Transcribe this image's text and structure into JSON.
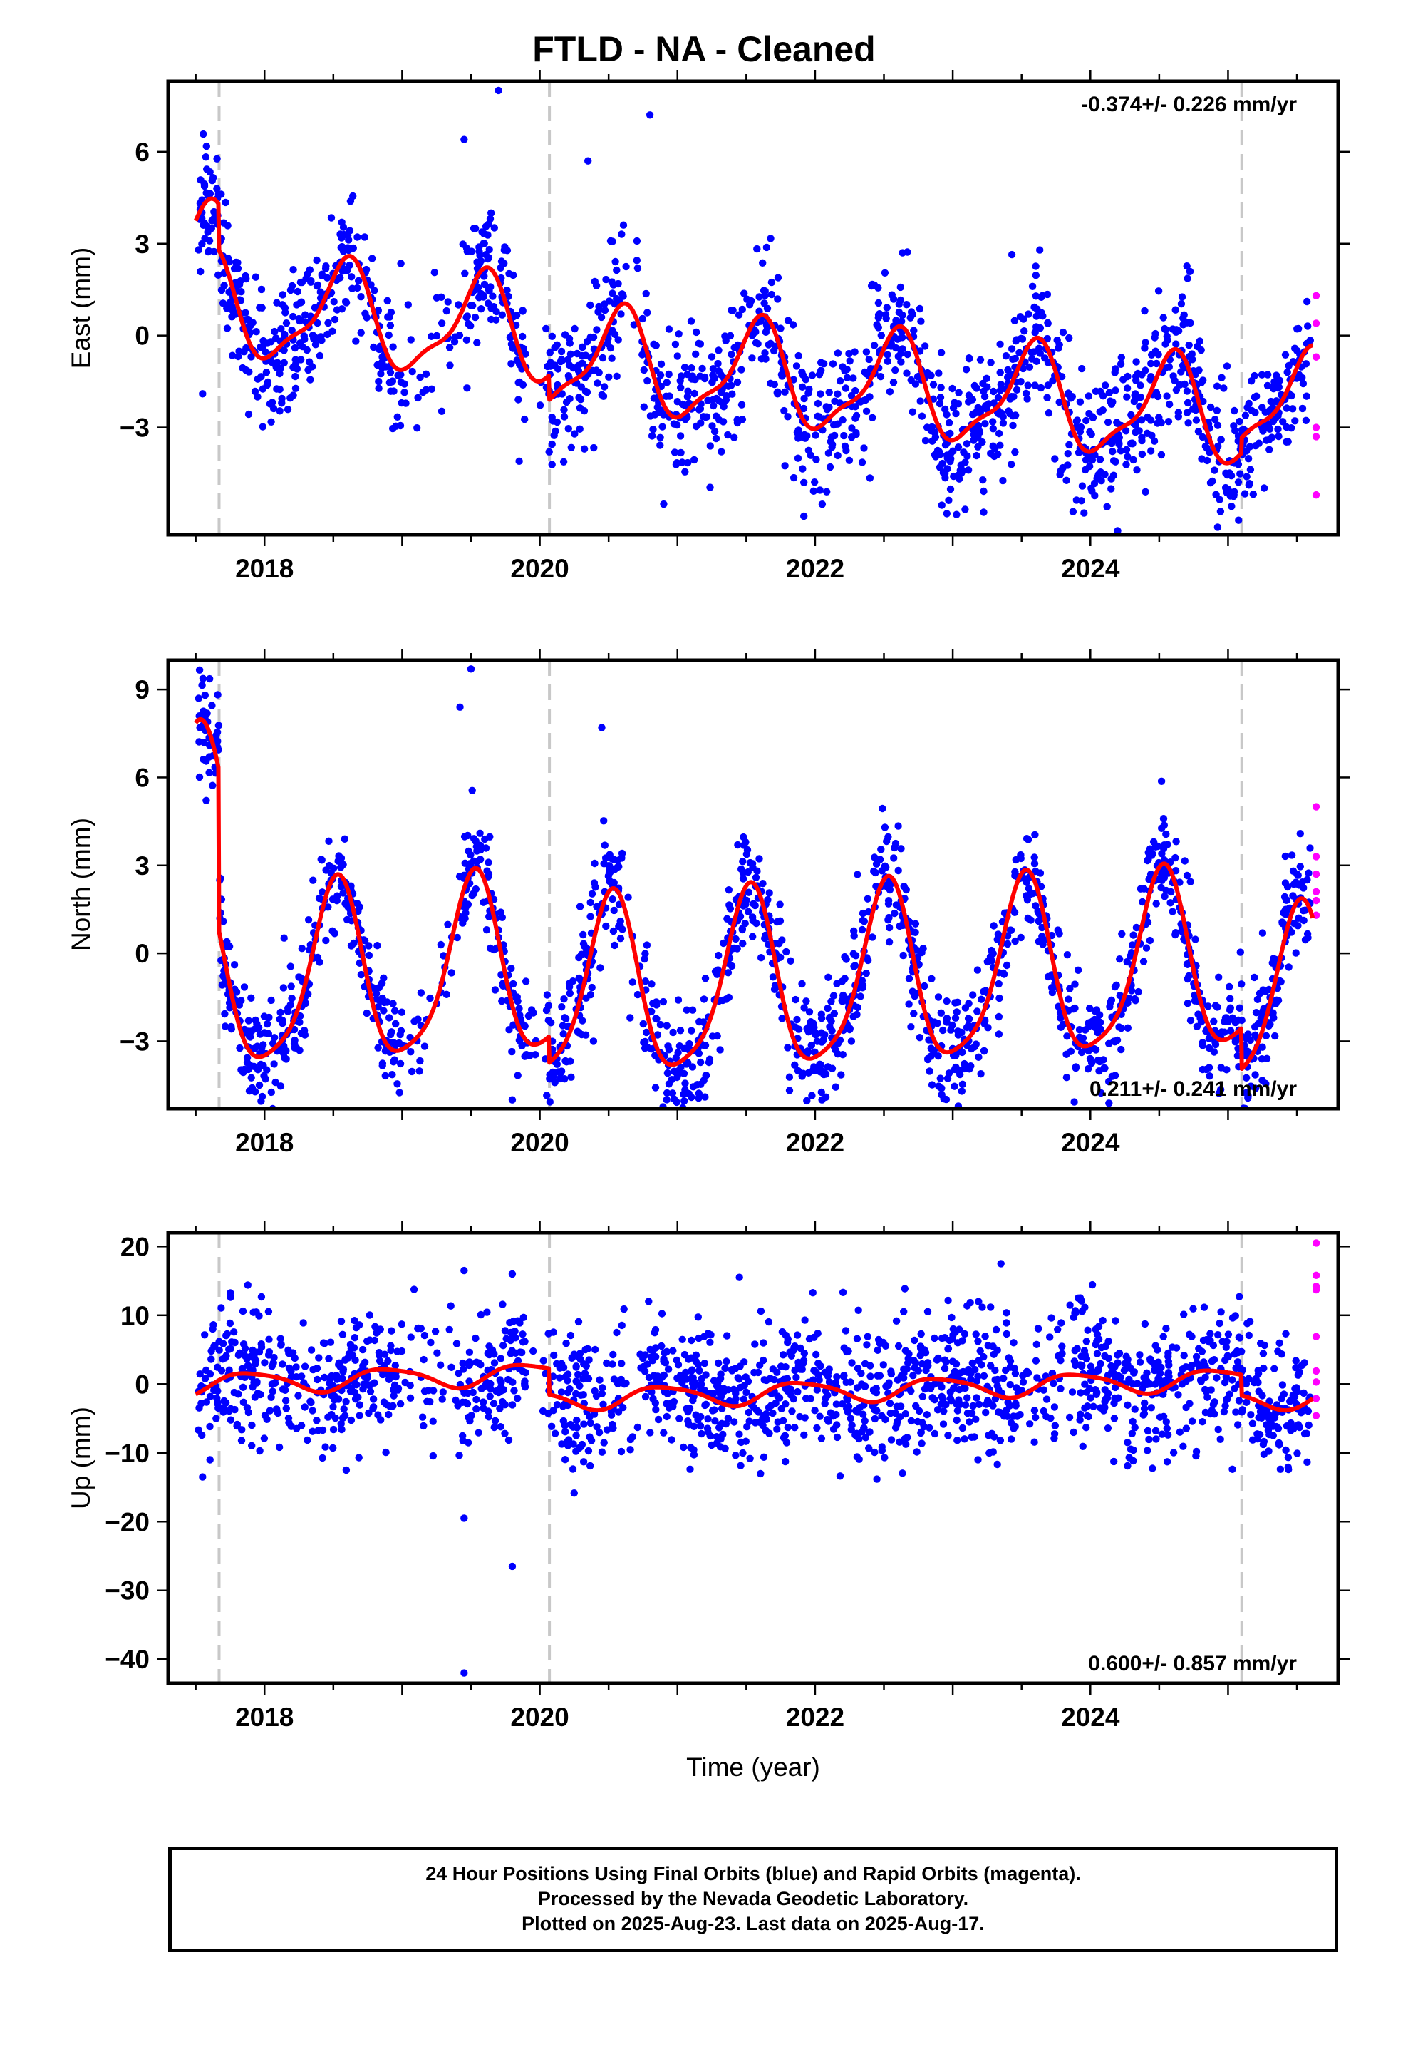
{
  "title": "FTLD  - NA - Cleaned",
  "footer": [
    "24 Hour Positions Using Final Orbits (blue) and Rapid Orbits (magenta).",
    "Processed by the Nevada Geodetic Laboratory.",
    "Plotted on 2025-Aug-23. Last data on 2025-Aug-17."
  ],
  "colors": {
    "final_orbits": "#0000ff",
    "rapid_orbits": "#ff00ff",
    "model_fit": "#ff0000",
    "equipment_change_lines": "#c8c8c8"
  },
  "chart_data": [
    {
      "type": "scatter",
      "panel": "east",
      "ylabel": "East (mm)",
      "xlabel": "",
      "xlim": [
        2017.3,
        2025.8
      ],
      "ylim": [
        -6.5,
        8.3
      ],
      "xticks": [
        2018,
        2020,
        2022,
        2024
      ],
      "yticks": [
        -3,
        0,
        3,
        6
      ],
      "rate_label": "-0.374+/- 0.226 mm/yr",
      "rate_position": "top-right",
      "step_lines_x": [
        2017.67,
        2020.07,
        2025.1
      ],
      "fit": {
        "offset": 2.5,
        "trend": -0.374,
        "annual_amp": 1.6,
        "annual_phase": 0.58,
        "semi_amp": 0.5,
        "semi_phase": 0.15,
        "steps": [
          {
            "x": 2017.67,
            "dy": -1.5
          },
          {
            "x": 2020.07,
            "dy": -0.8
          },
          {
            "x": 2025.1,
            "dy": 0.5
          }
        ]
      },
      "scatter_sigma": 1.1,
      "n_final_points": 1700,
      "rapid_points": [
        [
          2025.64,
          1.3
        ],
        [
          2025.64,
          0.4
        ],
        [
          2025.64,
          -0.7
        ],
        [
          2025.64,
          -3.0
        ],
        [
          2025.64,
          -3.3
        ],
        [
          2025.64,
          -5.2
        ]
      ],
      "outliers": [
        [
          2019.7,
          8.0
        ],
        [
          2020.8,
          7.2
        ],
        [
          2019.45,
          6.4
        ],
        [
          2020.35,
          5.7
        ],
        [
          2017.55,
          -1.9
        ],
        [
          2019.85,
          -4.1
        ],
        [
          2020.9,
          -5.5
        ],
        [
          2024.15,
          -5.0
        ],
        [
          2024.4,
          -5.1
        ]
      ]
    },
    {
      "type": "scatter",
      "panel": "north",
      "ylabel": "North (mm)",
      "xlabel": "",
      "xlim": [
        2017.3,
        2025.8
      ],
      "ylim": [
        -5.3,
        10.0
      ],
      "xticks": [
        2018,
        2020,
        2022,
        2024
      ],
      "yticks": [
        -3,
        0,
        3,
        6,
        9
      ],
      "rate_label": "0.211+/- 0.241 mm/yr",
      "rate_position": "bottom-right",
      "step_lines_x": [
        2017.67,
        2020.07,
        2025.1
      ],
      "fit": {
        "offset": 4.4,
        "trend": 0.211,
        "annual_amp": 3.0,
        "annual_phase": 0.52,
        "semi_amp": 0.6,
        "semi_phase": 0.05,
        "steps": [
          {
            "x": 2017.67,
            "dy": -5.5
          },
          {
            "x": 2020.07,
            "dy": -0.9
          },
          {
            "x": 2025.1,
            "dy": -1.4
          }
        ]
      },
      "scatter_sigma": 1.0,
      "n_final_points": 1700,
      "rapid_points": [
        [
          2025.64,
          5.0
        ],
        [
          2025.64,
          3.3
        ],
        [
          2025.64,
          2.7
        ],
        [
          2025.64,
          2.1
        ],
        [
          2025.64,
          1.8
        ],
        [
          2025.64,
          1.3
        ]
      ],
      "outliers": [
        [
          2019.5,
          9.7
        ],
        [
          2019.42,
          8.4
        ],
        [
          2020.45,
          7.7
        ],
        [
          2019.8,
          -5.0
        ],
        [
          2022.05,
          -5.0
        ],
        [
          2021.2,
          -4.9
        ],
        [
          2024.95,
          -3.9
        ]
      ]
    },
    {
      "type": "scatter",
      "panel": "up",
      "ylabel": "Up (mm)",
      "xlabel": "Time (year)",
      "xlim": [
        2017.3,
        2025.8
      ],
      "ylim": [
        -43.5,
        22
      ],
      "xticks": [
        2018,
        2020,
        2022,
        2024
      ],
      "yticks": [
        -40,
        -30,
        -20,
        -10,
        0,
        10,
        20
      ],
      "rate_label": "0.600+/- 0.857 mm/yr",
      "rate_position": "bottom-right",
      "step_lines_x": [
        2017.67,
        2020.07,
        2025.1
      ],
      "fit": {
        "offset": 0.0,
        "trend": 0.6,
        "annual_amp": 1.5,
        "annual_phase": 0.9,
        "semi_amp": 0.3,
        "semi_phase": 0.2,
        "steps": [
          {
            "x": 2020.07,
            "dy": -3.8
          },
          {
            "x": 2025.1,
            "dy": -3.0
          }
        ]
      },
      "scatter_sigma": 4.8,
      "n_final_points": 1700,
      "rapid_points": [
        [
          2025.64,
          20.5
        ],
        [
          2025.64,
          15.8
        ],
        [
          2025.64,
          14.2
        ],
        [
          2025.64,
          13.7
        ],
        [
          2025.64,
          6.9
        ],
        [
          2025.64,
          1.9
        ],
        [
          2025.64,
          0.3
        ],
        [
          2025.64,
          -2.1
        ],
        [
          2025.64,
          -4.6
        ]
      ],
      "outliers": [
        [
          2019.45,
          -42.0
        ],
        [
          2019.8,
          -26.5
        ],
        [
          2019.45,
          -19.5
        ],
        [
          2019.45,
          16.5
        ],
        [
          2019.8,
          16.0
        ],
        [
          2023.35,
          17.5
        ],
        [
          2021.45,
          15.5
        ],
        [
          2017.55,
          -13.5
        ]
      ]
    }
  ]
}
